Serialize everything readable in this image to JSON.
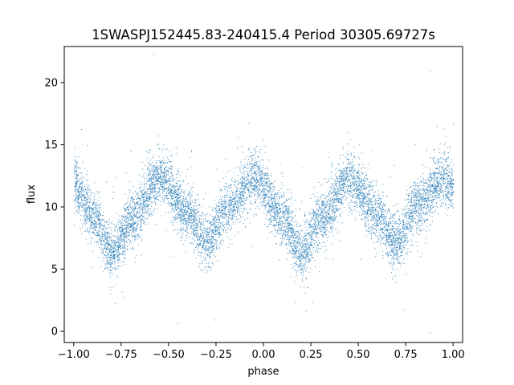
{
  "chart_data": {
    "type": "scatter",
    "title": "1SWASPJ152445.83-240415.4 Period 30305.69727s",
    "xlabel": "phase",
    "ylabel": "flux",
    "xlim": [
      -1.05,
      1.05
    ],
    "ylim": [
      -0.9,
      22.9
    ],
    "xticks": [
      -1.0,
      -0.75,
      -0.5,
      -0.25,
      0.0,
      0.25,
      0.5,
      0.75,
      1.0
    ],
    "xtick_labels": [
      "−1.00",
      "−0.75",
      "−0.50",
      "−0.25",
      "0.00",
      "0.25",
      "0.50",
      "0.75",
      "1.00"
    ],
    "yticks": [
      0,
      5,
      10,
      15,
      20
    ],
    "ytick_labels": [
      "0",
      "5",
      "10",
      "15",
      "20"
    ],
    "grid": false,
    "legend": "none",
    "marker_color": "#1f77b4",
    "marker_size_pt": 0.5,
    "light_curve_profile": {
      "phase": [
        -1.0,
        -0.9,
        -0.8,
        -0.7,
        -0.55,
        -0.4,
        -0.3,
        -0.2,
        -0.05,
        0.1,
        0.2,
        0.3,
        0.45,
        0.6,
        0.7,
        0.8,
        0.95,
        1.0
      ],
      "flux_median": [
        11.8,
        9.4,
        6.3,
        9.0,
        12.4,
        9.5,
        7.2,
        9.8,
        12.4,
        9.3,
        6.3,
        9.0,
        12.3,
        9.4,
        7.2,
        10.0,
        12.3,
        11.8
      ],
      "scatter_sigma": 1.1
    }
  }
}
